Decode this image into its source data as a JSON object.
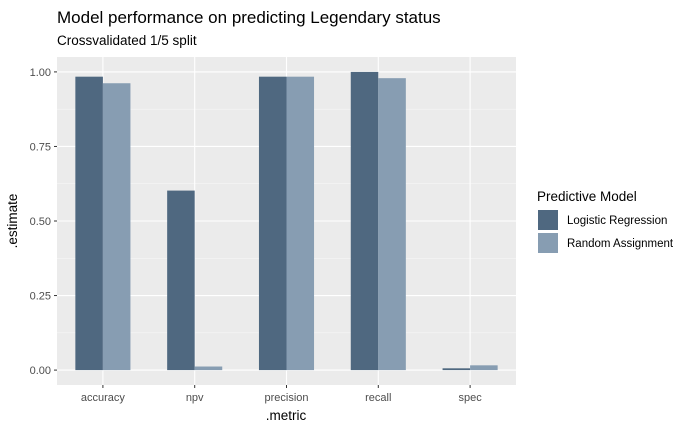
{
  "chart_data": {
    "type": "bar",
    "title": "Model performance on predicting Legendary status",
    "subtitle": "Crossvalidated 1/5 split",
    "xlabel": ".metric",
    "ylabel": ".estimate",
    "categories": [
      "accuracy",
      "npv",
      "precision",
      "recall",
      "spec"
    ],
    "series": [
      {
        "name": "Logistic Regression",
        "color": "#4f6880",
        "values": [
          0.984,
          0.602,
          0.984,
          1.0,
          0.006
        ]
      },
      {
        "name": "Random Assignment",
        "color": "#879db2",
        "values": [
          0.962,
          0.012,
          0.984,
          0.979,
          0.016
        ]
      }
    ],
    "ylim": [
      -0.05,
      1.05
    ],
    "yticks": [
      0.0,
      0.25,
      0.5,
      0.75,
      1.0
    ],
    "ytick_labels": [
      "0.00",
      "0.25",
      "0.50",
      "0.75",
      "1.00"
    ],
    "grid": true,
    "legend": {
      "title": "Predictive Model",
      "position": "right"
    }
  }
}
